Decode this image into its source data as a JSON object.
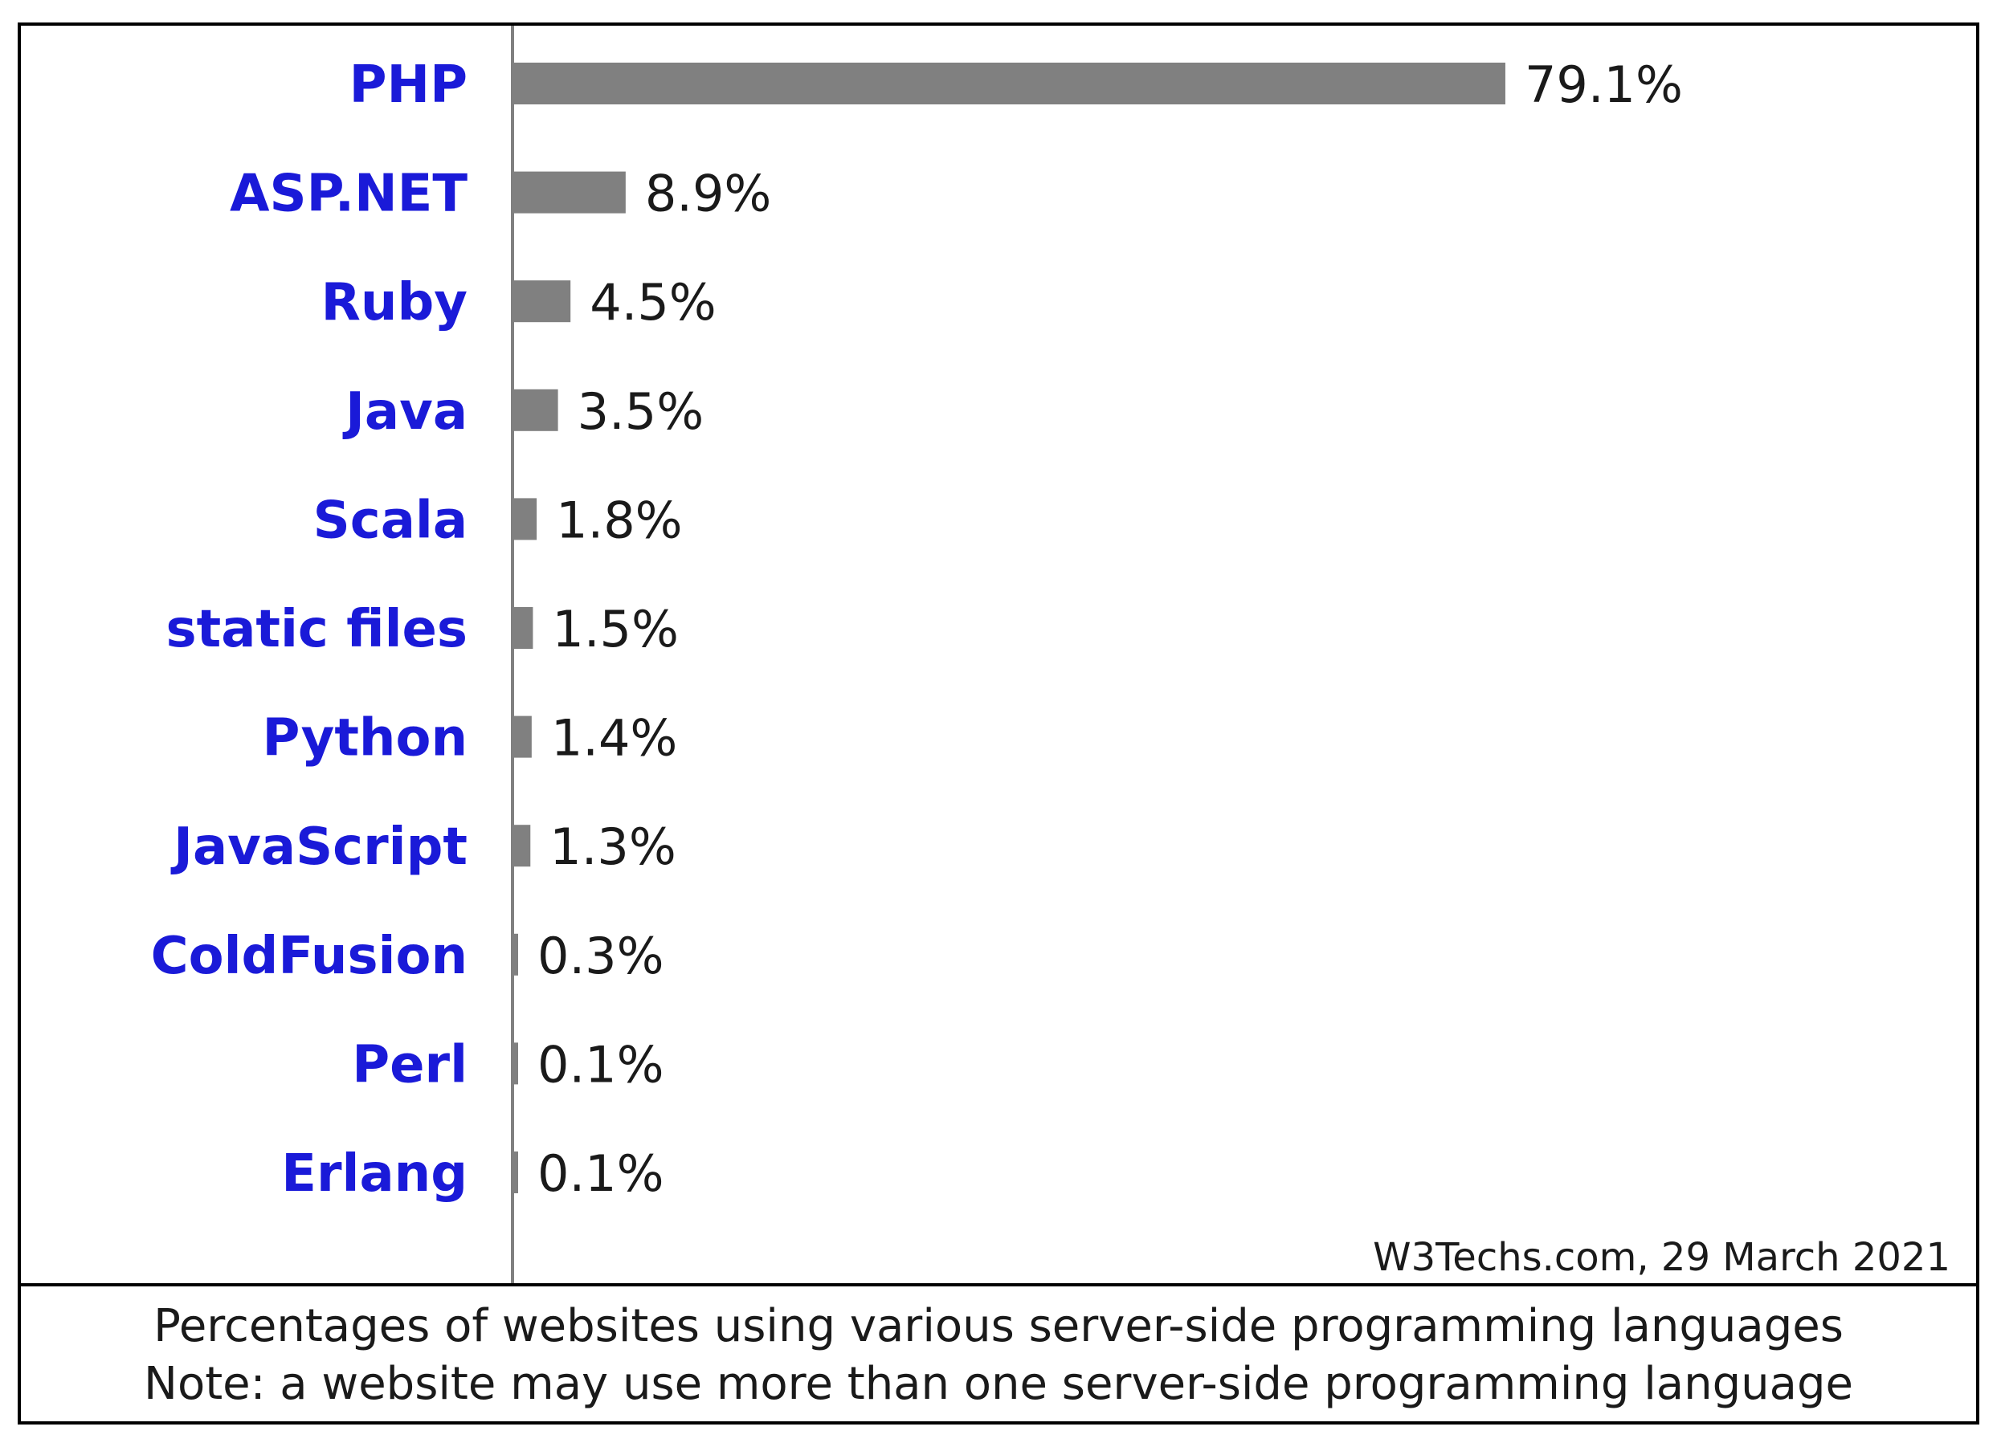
{
  "chart_data": {
    "type": "bar",
    "orientation": "horizontal",
    "categories": [
      "PHP",
      "ASP.NET",
      "Ruby",
      "Java",
      "Scala",
      "static files",
      "Python",
      "JavaScript",
      "ColdFusion",
      "Perl",
      "Erlang"
    ],
    "values": [
      79.1,
      8.9,
      4.5,
      3.5,
      1.8,
      1.5,
      1.4,
      1.3,
      0.3,
      0.1,
      0.1
    ],
    "value_labels": [
      "79.1%",
      "8.9%",
      "4.5%",
      "3.5%",
      "1.8%",
      "1.5%",
      "1.4%",
      "1.3%",
      "0.3%",
      "0.1%",
      "0.1%"
    ],
    "unit": "%",
    "source_note": "W3Techs.com, 29 March 2021",
    "caption_line1": "Percentages of websites using various server-side programming languages",
    "caption_line2": "Note: a website may use more than one server-side programming language",
    "grid": false,
    "colors": {
      "bar": "#808080",
      "category_label": "#1a1ad8",
      "value_label": "#1a1a1a",
      "axis": "#808080",
      "border": "#000000"
    }
  }
}
